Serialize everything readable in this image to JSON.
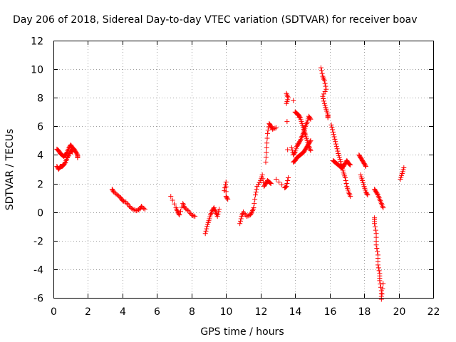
{
  "chart_data": {
    "type": "scatter",
    "title": "Day 206 of 2018, Sidereal Day-to-day VTEC variation (SDTVAR) for receiver boav",
    "xlabel": "GPS time / hours",
    "ylabel": "SDTVAR / TECUs",
    "xlim": [
      0,
      22
    ],
    "ylim": [
      -6,
      12
    ],
    "xticks": [
      0,
      2,
      4,
      6,
      8,
      10,
      12,
      14,
      16,
      18,
      20,
      22
    ],
    "yticks": [
      -6,
      -4,
      -2,
      0,
      2,
      4,
      6,
      8,
      10,
      12
    ],
    "grid": true,
    "marker": "plus",
    "marker_color": "#ff0000",
    "series": [
      {
        "name": "SDTVAR",
        "segments": [
          [
            [
              0.2,
              4.4
            ],
            [
              0.3,
              4.3
            ],
            [
              0.4,
              4.1
            ],
            [
              0.5,
              4.0
            ],
            [
              0.6,
              3.9
            ],
            [
              0.7,
              4.0
            ],
            [
              0.8,
              4.2
            ],
            [
              0.9,
              4.5
            ],
            [
              1.0,
              4.7
            ],
            [
              1.1,
              4.5
            ],
            [
              1.2,
              4.4
            ],
            [
              1.3,
              4.2
            ],
            [
              1.4,
              4.0
            ],
            [
              1.4,
              3.8
            ]
          ],
          [
            [
              0.2,
              3.2
            ],
            [
              0.3,
              3.0
            ],
            [
              0.4,
              3.2
            ],
            [
              0.5,
              3.2
            ],
            [
              0.6,
              3.3
            ],
            [
              0.7,
              3.5
            ],
            [
              0.8,
              3.8
            ],
            [
              0.9,
              4.0
            ],
            [
              1.0,
              4.3
            ],
            [
              1.1,
              4.2
            ]
          ],
          [
            [
              3.4,
              1.6
            ],
            [
              3.5,
              1.4
            ],
            [
              3.7,
              1.2
            ],
            [
              3.9,
              1.0
            ],
            [
              4.0,
              0.8
            ],
            [
              4.2,
              0.7
            ],
            [
              4.4,
              0.4
            ],
            [
              4.6,
              0.2
            ],
            [
              4.8,
              0.1
            ],
            [
              5.0,
              0.2
            ],
            [
              5.1,
              0.4
            ],
            [
              5.3,
              0.2
            ]
          ],
          [
            [
              6.8,
              1.1
            ],
            [
              7.1,
              0.3
            ],
            [
              7.2,
              0.0
            ],
            [
              7.3,
              -0.2
            ],
            [
              7.5,
              0.6
            ],
            [
              7.6,
              0.3
            ],
            [
              7.8,
              0.1
            ],
            [
              8.0,
              -0.2
            ],
            [
              8.2,
              -0.3
            ]
          ],
          [
            [
              8.8,
              -1.5
            ],
            [
              8.9,
              -1.0
            ],
            [
              9.0,
              -0.6
            ],
            [
              9.1,
              -0.2
            ],
            [
              9.2,
              0.1
            ],
            [
              9.3,
              0.3
            ],
            [
              9.4,
              0.0
            ],
            [
              9.5,
              -0.3
            ],
            [
              9.6,
              0.2
            ]
          ],
          [
            [
              9.9,
              1.5
            ],
            [
              10.0,
              2.1
            ],
            [
              10.0,
              1.1
            ],
            [
              10.1,
              0.9
            ]
          ],
          [
            [
              10.8,
              -0.8
            ],
            [
              10.9,
              -0.3
            ],
            [
              11.0,
              0.0
            ],
            [
              11.2,
              -0.3
            ],
            [
              11.4,
              -0.2
            ],
            [
              11.5,
              0.0
            ],
            [
              11.6,
              0.3
            ],
            [
              11.7,
              1.2
            ],
            [
              11.8,
              1.8
            ],
            [
              12.0,
              2.2
            ],
            [
              12.1,
              2.6
            ],
            [
              12.2,
              1.8
            ],
            [
              12.3,
              2.0
            ],
            [
              12.4,
              2.2
            ],
            [
              12.5,
              2.1
            ],
            [
              12.6,
              2.0
            ]
          ],
          [
            [
              12.3,
              3.5
            ],
            [
              12.35,
              4.5
            ],
            [
              12.4,
              5.5
            ],
            [
              12.5,
              6.2
            ],
            [
              12.6,
              6.0
            ],
            [
              12.7,
              5.8
            ],
            [
              12.9,
              5.9
            ]
          ],
          [
            [
              12.9,
              2.3
            ],
            [
              13.4,
              1.7
            ],
            [
              13.5,
              1.8
            ],
            [
              13.6,
              2.4
            ],
            [
              13.5,
              8.3
            ],
            [
              13.6,
              8.0
            ],
            [
              13.5,
              7.6
            ]
          ],
          [
            [
              13.8,
              4.5
            ],
            [
              13.9,
              4.0
            ],
            [
              14.0,
              4.2
            ],
            [
              14.1,
              4.6
            ],
            [
              14.2,
              4.8
            ],
            [
              14.3,
              5.0
            ],
            [
              14.4,
              5.3
            ],
            [
              14.5,
              5.6
            ],
            [
              14.6,
              6.0
            ],
            [
              14.7,
              6.3
            ],
            [
              14.8,
              6.7
            ],
            [
              14.9,
              6.5
            ]
          ],
          [
            [
              13.9,
              3.5
            ],
            [
              14.0,
              3.6
            ],
            [
              14.1,
              3.8
            ],
            [
              14.2,
              3.9
            ],
            [
              14.3,
              4.0
            ],
            [
              14.4,
              4.1
            ],
            [
              14.5,
              4.2
            ],
            [
              14.6,
              4.4
            ],
            [
              14.7,
              4.6
            ],
            [
              14.8,
              4.8
            ],
            [
              14.9,
              5.0
            ]
          ],
          [
            [
              14.0,
              7.0
            ],
            [
              14.1,
              6.9
            ],
            [
              14.2,
              6.8
            ],
            [
              14.3,
              6.6
            ],
            [
              14.4,
              6.2
            ],
            [
              14.5,
              5.8
            ],
            [
              14.6,
              5.4
            ],
            [
              14.7,
              5.0
            ],
            [
              14.8,
              4.6
            ],
            [
              14.9,
              4.3
            ],
            [
              13.9,
              7.8
            ]
          ],
          [
            [
              15.5,
              10.1
            ],
            [
              15.6,
              9.5
            ],
            [
              15.7,
              9.2
            ],
            [
              15.8,
              8.6
            ],
            [
              15.6,
              8.1
            ],
            [
              15.7,
              7.6
            ],
            [
              15.8,
              7.2
            ],
            [
              15.9,
              6.8
            ],
            [
              15.9,
              6.6
            ]
          ],
          [
            [
              16.1,
              6.1
            ],
            [
              16.2,
              5.6
            ],
            [
              16.3,
              5.1
            ],
            [
              16.4,
              4.6
            ],
            [
              16.5,
              4.1
            ],
            [
              16.6,
              3.7
            ],
            [
              16.7,
              3.2
            ],
            [
              16.8,
              2.8
            ],
            [
              16.9,
              2.4
            ],
            [
              17.0,
              1.8
            ],
            [
              17.1,
              1.4
            ],
            [
              17.2,
              1.1
            ]
          ],
          [
            [
              16.2,
              3.6
            ],
            [
              16.3,
              3.5
            ],
            [
              16.4,
              3.4
            ],
            [
              16.5,
              3.3
            ],
            [
              16.6,
              3.2
            ],
            [
              16.7,
              3.1
            ],
            [
              16.8,
              3.2
            ],
            [
              16.9,
              3.4
            ],
            [
              17.0,
              3.6
            ],
            [
              17.1,
              3.4
            ],
            [
              17.2,
              3.3
            ]
          ],
          [
            [
              17.7,
              4.0
            ],
            [
              17.8,
              3.8
            ],
            [
              17.9,
              3.6
            ],
            [
              18.0,
              3.4
            ],
            [
              18.1,
              3.2
            ]
          ],
          [
            [
              17.8,
              2.6
            ],
            [
              17.9,
              2.2
            ],
            [
              18.0,
              1.8
            ],
            [
              18.1,
              1.4
            ],
            [
              18.2,
              1.2
            ]
          ],
          [
            [
              18.6,
              -0.4
            ],
            [
              18.6,
              -0.8
            ],
            [
              18.7,
              -1.5
            ],
            [
              18.7,
              -2.3
            ],
            [
              18.8,
              -3.0
            ],
            [
              18.8,
              -3.7
            ],
            [
              18.9,
              -4.3
            ],
            [
              18.9,
              -4.8
            ],
            [
              19.0,
              -5.5
            ],
            [
              19.0,
              -6.1
            ],
            [
              19.1,
              -5.0
            ]
          ],
          [
            [
              18.6,
              1.6
            ],
            [
              18.7,
              1.4
            ],
            [
              18.8,
              1.2
            ],
            [
              18.9,
              0.9
            ],
            [
              19.0,
              0.6
            ],
            [
              19.1,
              0.3
            ]
          ],
          [
            [
              20.1,
              2.3
            ],
            [
              20.2,
              2.7
            ],
            [
              20.3,
              3.1
            ]
          ]
        ]
      }
    ]
  }
}
